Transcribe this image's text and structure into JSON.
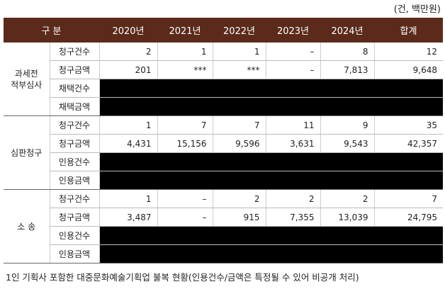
{
  "unit": "(건, 백만원)",
  "table": {
    "header": [
      "구 분",
      "2020년",
      "2021년",
      "2022년",
      "2023년",
      "2024년",
      "합계"
    ],
    "groups": [
      {
        "label": "과세전\n적부심사",
        "rows": [
          {
            "label": "청구건수",
            "values": [
              "2",
              "1",
              "1",
              "–",
              "8",
              "12"
            ]
          },
          {
            "label": "청구금액",
            "values": [
              "201",
              "***",
              "***",
              "–",
              "7,813",
              "9,648"
            ]
          },
          {
            "label": "채택건수",
            "values": null
          },
          {
            "label": "채택금액",
            "values": null
          }
        ]
      },
      {
        "label": "심판청구",
        "rows": [
          {
            "label": "청구건수",
            "values": [
              "1",
              "7",
              "7",
              "11",
              "9",
              "35"
            ]
          },
          {
            "label": "청구금액",
            "values": [
              "4,431",
              "15,156",
              "9,596",
              "3,631",
              "9,543",
              "42,357"
            ]
          },
          {
            "label": "인용건수",
            "values": null
          },
          {
            "label": "인용금액",
            "values": null
          }
        ]
      },
      {
        "label": "소 송",
        "rows": [
          {
            "label": "청구건수",
            "values": [
              "1",
              "–",
              "2",
              "2",
              "2",
              "7"
            ]
          },
          {
            "label": "청구금액",
            "values": [
              "3,487",
              "–",
              "915",
              "7,355",
              "13,039",
              "24,795"
            ]
          },
          {
            "label": "인용건수",
            "values": null
          },
          {
            "label": "인용금액",
            "values": null
          }
        ]
      }
    ]
  },
  "footnote": "1인 기획사 포함한 대중문화예술기획업 불복 현황(인용건수/금액은 특정될 수 있어 비공개 처리)"
}
